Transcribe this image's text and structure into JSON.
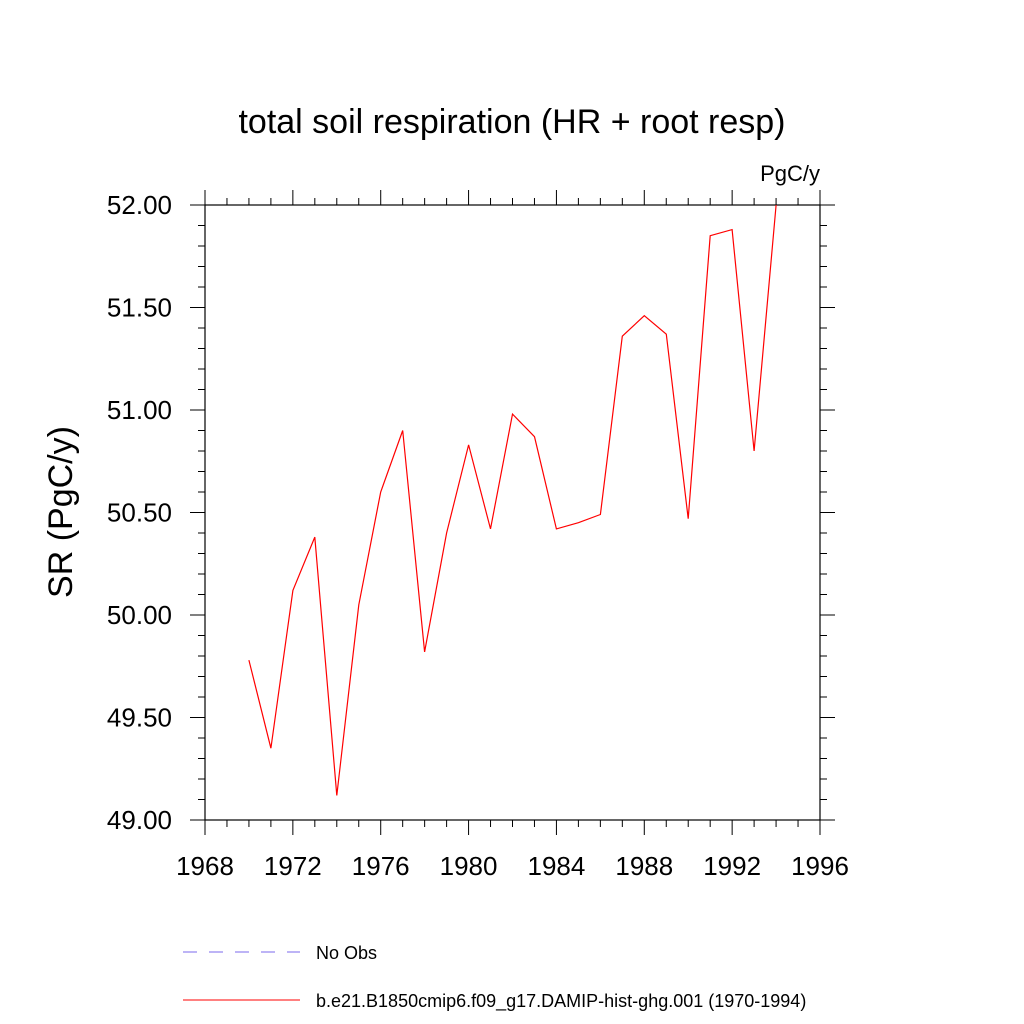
{
  "chart_data": {
    "type": "line",
    "title": "total soil respiration (HR + root resp)",
    "units_label": "PgC/y",
    "ylabel": "SR  (PgC/y)",
    "xlabel": "",
    "xlim": [
      1968,
      1996
    ],
    "ylim": [
      49.0,
      52.0
    ],
    "x_ticks": [
      "1968",
      "1972",
      "1976",
      "1980",
      "1984",
      "1988",
      "1992",
      "1996"
    ],
    "y_ticks": [
      "49.00",
      "49.50",
      "50.00",
      "50.50",
      "51.00",
      "51.50",
      "52.00"
    ],
    "grid": false,
    "legend_position": "bottom",
    "series": [
      {
        "name": "b.e21.B1850cmip6.f09_g17.DAMIP-hist-ghg.001 (1970-1994)",
        "color": "#ff0000",
        "style": "solid",
        "x": [
          1970,
          1971,
          1972,
          1973,
          1974,
          1975,
          1976,
          1977,
          1978,
          1979,
          1980,
          1981,
          1982,
          1983,
          1984,
          1985,
          1986,
          1987,
          1988,
          1989,
          1990,
          1991,
          1992,
          1993,
          1994
        ],
        "values": [
          49.78,
          49.35,
          50.12,
          50.38,
          49.12,
          50.05,
          50.6,
          50.9,
          49.82,
          50.4,
          50.83,
          50.42,
          50.98,
          50.87,
          50.42,
          50.45,
          50.49,
          51.36,
          51.46,
          51.37,
          50.47,
          51.85,
          51.88,
          50.8,
          52.0
        ]
      }
    ],
    "legend": [
      {
        "label": "No Obs",
        "color": "#7b68ee",
        "style": "dashed"
      },
      {
        "label": "b.e21.B1850cmip6.f09_g17.DAMIP-hist-ghg.001 (1970-1994)",
        "color": "#ff0000",
        "style": "solid"
      }
    ]
  }
}
